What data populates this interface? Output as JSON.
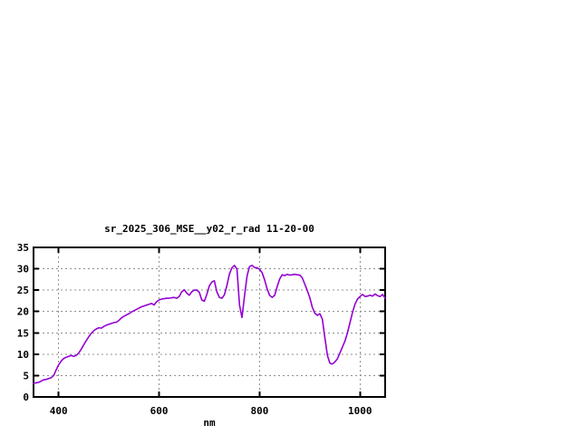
{
  "window": {
    "background": "#ffffff"
  },
  "chart_data": {
    "type": "line",
    "title": "sr_2025_306_MSE__y02_r_rad 11-20-00",
    "xlabel": "nm",
    "ylabel": "",
    "xlim": [
      350,
      1050
    ],
    "ylim": [
      0,
      35
    ],
    "x_ticks": [
      400,
      600,
      800,
      1000
    ],
    "y_ticks": [
      0,
      5,
      10,
      15,
      20,
      25,
      30,
      35
    ],
    "grid": "dashed",
    "legend": "none",
    "line_color": "#9400d3",
    "border_color": "#000000",
    "grid_color": "#909090",
    "background_color": "#ffffff",
    "series_name": "sr_2025_306_MSE__y02_r_rad",
    "x_start": 350,
    "x_step": 5,
    "values": [
      3.2,
      3.3,
      3.4,
      3.7,
      4.0,
      4.1,
      4.3,
      4.5,
      5.0,
      6.3,
      7.5,
      8.4,
      9.0,
      9.3,
      9.5,
      9.7,
      9.5,
      9.7,
      10.3,
      11.2,
      12.2,
      13.2,
      14.1,
      14.9,
      15.5,
      15.9,
      16.2,
      16.1,
      16.5,
      16.8,
      17.0,
      17.2,
      17.4,
      17.5,
      17.9,
      18.5,
      18.9,
      19.2,
      19.5,
      19.9,
      20.2,
      20.5,
      20.8,
      21.1,
      21.3,
      21.5,
      21.7,
      21.9,
      21.5,
      22.3,
      22.7,
      22.9,
      23.0,
      23.1,
      23.1,
      23.2,
      23.3,
      23.1,
      23.5,
      24.6,
      25.1,
      24.3,
      23.8,
      24.6,
      25.0,
      25.0,
      24.5,
      22.7,
      22.4,
      24.0,
      26.0,
      26.9,
      27.2,
      24.6,
      23.3,
      23.1,
      23.9,
      26.1,
      28.8,
      30.2,
      30.8,
      29.9,
      21.5,
      18.6,
      23.6,
      28.3,
      30.5,
      30.8,
      30.3,
      30.2,
      29.9,
      29.1,
      27.4,
      25.3,
      23.8,
      23.3,
      23.8,
      25.8,
      27.6,
      28.6,
      28.4,
      28.7,
      28.5,
      28.6,
      28.7,
      28.6,
      28.5,
      27.9,
      26.4,
      24.9,
      23.2,
      21.0,
      19.6,
      19.1,
      19.5,
      18.2,
      13.8,
      9.7,
      7.9,
      7.7,
      8.2,
      8.9,
      10.3,
      11.7,
      13.1,
      15.0,
      17.4,
      19.8,
      21.7,
      22.9,
      23.5,
      24.0,
      23.5,
      23.6,
      23.8,
      23.6,
      24.1,
      23.7,
      23.5,
      24.0,
      23.1
    ]
  }
}
